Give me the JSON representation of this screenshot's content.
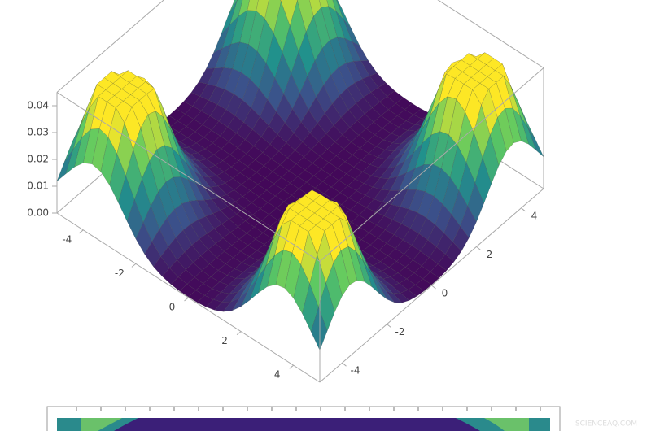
{
  "chart_data": {
    "type": "surface",
    "xlim": [
      -5,
      5
    ],
    "xticks": [
      -4,
      -2,
      0,
      2,
      4
    ],
    "ylim": [
      -5,
      5
    ],
    "yticks": [
      -4,
      -2,
      0,
      2,
      4
    ],
    "zlim": [
      0,
      0.045
    ],
    "zticks": [
      {
        "value": 0,
        "label": "0.00"
      },
      {
        "value": 0.01,
        "label": "0.01"
      },
      {
        "value": 0.02,
        "label": "0.02"
      },
      {
        "value": 0.03,
        "label": "0.03"
      },
      {
        "value": 0.04,
        "label": "0.04"
      }
    ],
    "peaks": [
      {
        "x": -3.6,
        "y": 3.6,
        "z": 0.06,
        "spread": 1.1
      },
      {
        "x": -3.6,
        "y": -3.6,
        "z": 0.06,
        "spread": 1.1
      },
      {
        "x": 3.6,
        "y": 3.6,
        "z": 0.06,
        "spread": 1.1
      },
      {
        "x": 3.6,
        "y": -3.6,
        "z": 0.06,
        "spread": 1.1
      }
    ],
    "watermark": "SCIENCEAQ.COM"
  }
}
